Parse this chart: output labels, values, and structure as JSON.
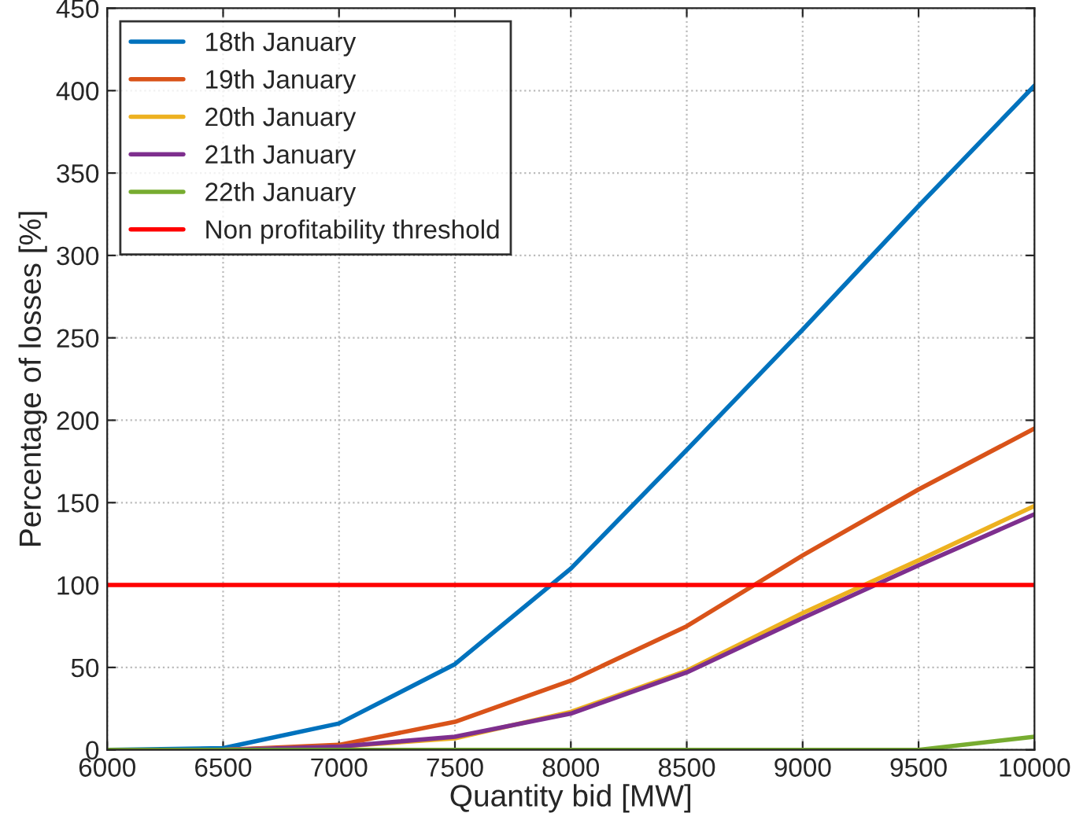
{
  "chart_data": {
    "type": "line",
    "xlabel": "Quantity bid [MW]",
    "ylabel": "Percentage of losses [%]",
    "x": [
      6000,
      6500,
      7000,
      7500,
      8000,
      8500,
      9000,
      9500,
      10000
    ],
    "series": [
      {
        "name": "18th January",
        "color": "#0072bd",
        "values": [
          0,
          1,
          16,
          52,
          110,
          182,
          255,
          330,
          403
        ]
      },
      {
        "name": "19th January",
        "color": "#d95319",
        "values": [
          0,
          0,
          3,
          17,
          42,
          75,
          118,
          158,
          195
        ]
      },
      {
        "name": "20th January",
        "color": "#edb120",
        "values": [
          0,
          0,
          2,
          7,
          23,
          48,
          83,
          115,
          148
        ]
      },
      {
        "name": "21th January",
        "color": "#7e2f8e",
        "values": [
          0,
          0,
          2,
          8,
          22,
          47,
          80,
          112,
          143
        ]
      },
      {
        "name": "22th January",
        "color": "#77ac30",
        "values": [
          0,
          0,
          0,
          0,
          0,
          0,
          0,
          0,
          8
        ]
      }
    ],
    "ref_lines": [
      {
        "axis": "y",
        "value": 100,
        "label": "Non profitability threshold",
        "color": "#ff0000",
        "line_style": "solid"
      }
    ],
    "xlim": [
      6000,
      10000
    ],
    "ylim": [
      0,
      450
    ],
    "xticks": [
      6000,
      6500,
      7000,
      7500,
      8000,
      8500,
      9000,
      9500,
      10000
    ],
    "yticks": [
      0,
      50,
      100,
      150,
      200,
      250,
      300,
      350,
      400,
      450
    ],
    "grid": true,
    "legend": "top left",
    "marker": "none",
    "line_style": "solid"
  }
}
